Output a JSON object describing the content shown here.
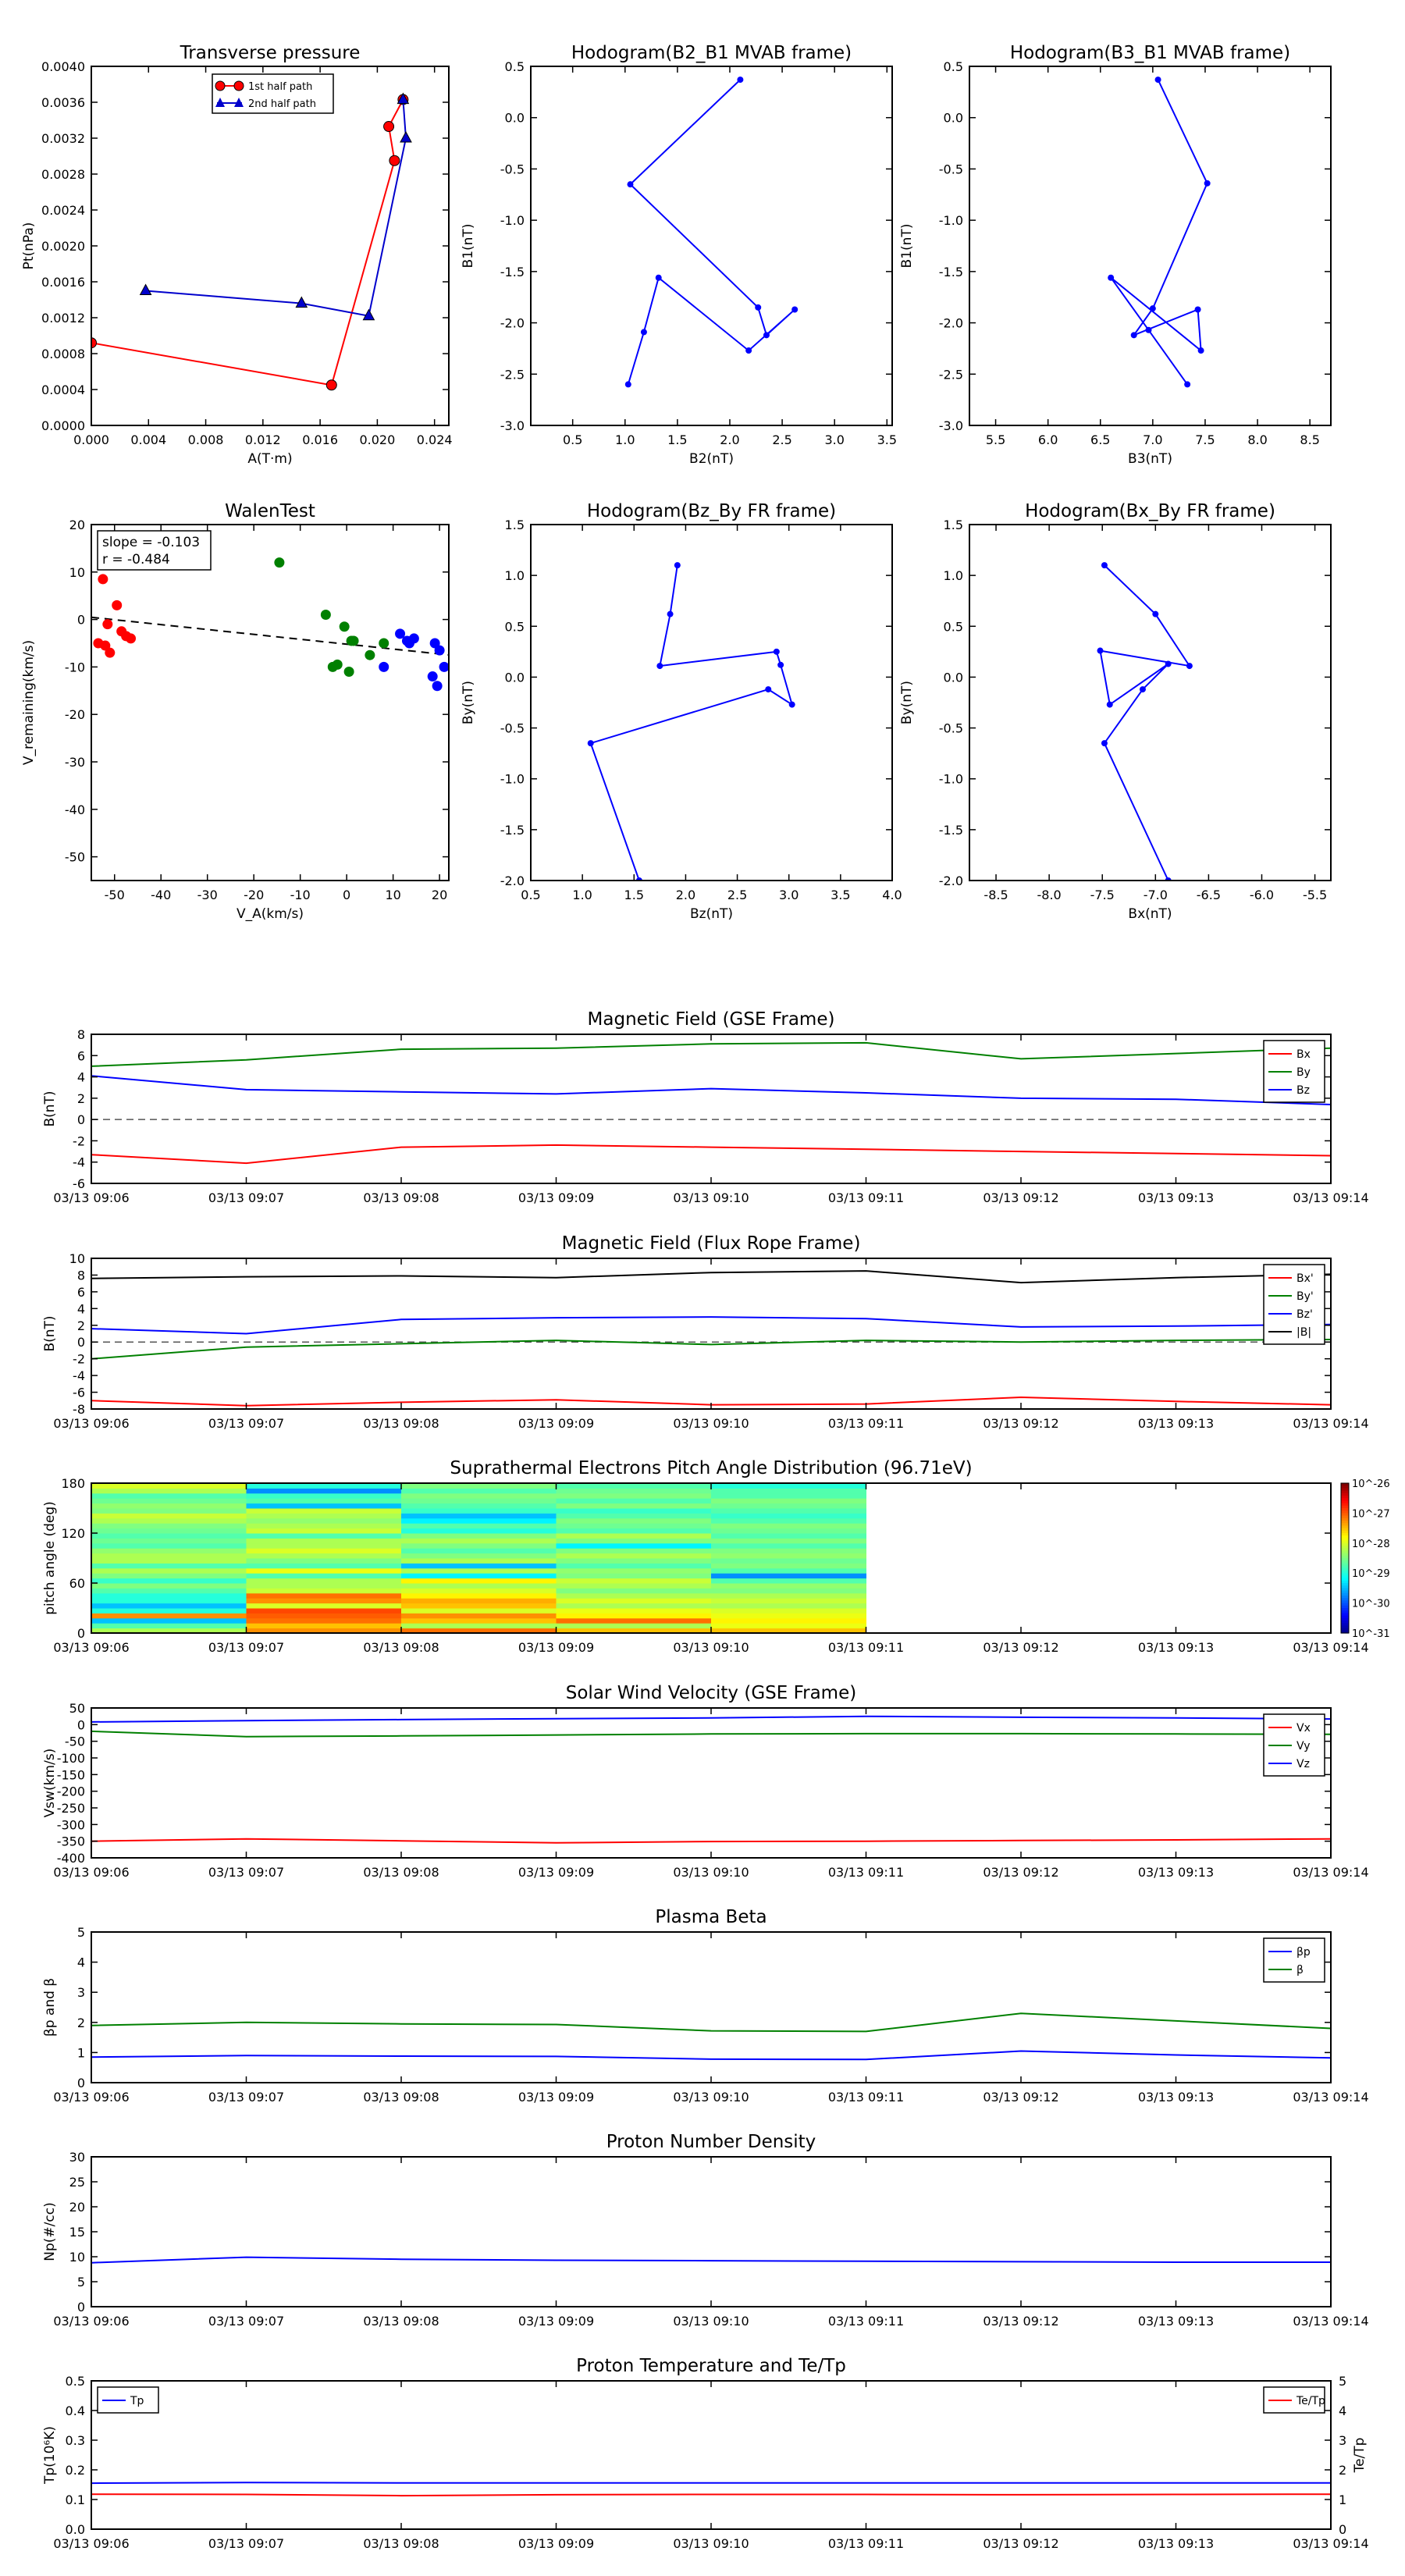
{
  "scatter_panels": [
    {
      "id": "transverse-pressure",
      "title": "Transverse pressure",
      "xlabel": "A(T·m)",
      "ylabel": "Pt(nPa)",
      "xlim": [
        0,
        0.025
      ],
      "ylim": [
        0,
        0.004
      ],
      "xticks": [
        "0.000",
        "0.004",
        "0.008",
        "0.012",
        "0.016",
        "0.020",
        "0.024"
      ],
      "yticks": [
        "0.0000",
        "0.0004",
        "0.0008",
        "0.0012",
        "0.0016",
        "0.0020",
        "0.0024",
        "0.0028",
        "0.0032",
        "0.0036",
        "0.0040"
      ],
      "legend": [
        {
          "name": "1st half path",
          "color": "#ff0000",
          "marker": "circle"
        },
        {
          "name": "2nd half path",
          "color": "#0000cc",
          "marker": "triangle"
        }
      ],
      "series": [
        {
          "name": "1st half path",
          "color": "#ff0000",
          "marker": "circle",
          "line": true,
          "x": [
            0.0,
            0.0168,
            0.0212,
            0.0208,
            0.0218
          ],
          "y": [
            0.00092,
            0.00045,
            0.00295,
            0.00333,
            0.00363
          ]
        },
        {
          "name": "2nd half path",
          "color": "#0000cc",
          "marker": "triangle",
          "line": true,
          "x": [
            0.0218,
            0.022,
            0.0194,
            0.0147,
            0.0038
          ],
          "y": [
            0.00363,
            0.0032,
            0.00122,
            0.00136,
            0.0015
          ]
        }
      ]
    },
    {
      "id": "hodogram-b2-b1",
      "title": "Hodogram(B2_B1 MVAB frame)",
      "xlabel": "B2(nT)",
      "ylabel": "B1(nT)",
      "xlim": [
        0.1,
        3.55
      ],
      "ylim": [
        -3.0,
        0.5
      ],
      "xticks": [
        "0.5",
        "1.0",
        "1.5",
        "2.0",
        "2.5",
        "3.0",
        "3.5"
      ],
      "yticks": [
        "-3.0",
        "-2.5",
        "-2.0",
        "-1.5",
        "-1.0",
        "-0.5",
        "0.0",
        "0.5"
      ],
      "series": [
        {
          "color": "#0000ff",
          "marker": "dot",
          "line": true,
          "x": [
            2.1,
            1.05,
            2.27,
            2.35,
            2.62,
            2.18,
            1.32,
            1.18,
            1.03
          ],
          "y": [
            0.37,
            -0.65,
            -1.85,
            -2.12,
            -1.87,
            -2.27,
            -1.56,
            -2.09,
            -2.6
          ]
        }
      ]
    },
    {
      "id": "hodogram-b3-b1",
      "title": "Hodogram(B3_B1 MVAB frame)",
      "xlabel": "B3(nT)",
      "ylabel": "B1(nT)",
      "xlim": [
        5.25,
        8.7
      ],
      "ylim": [
        -3.0,
        0.5
      ],
      "xticks": [
        "5.5",
        "6.0",
        "6.5",
        "7.0",
        "7.5",
        "8.0",
        "8.5"
      ],
      "yticks": [
        "-3.0",
        "-2.5",
        "-2.0",
        "-1.5",
        "-1.0",
        "-0.5",
        "0.0",
        "0.5"
      ],
      "series": [
        {
          "color": "#0000ff",
          "marker": "dot",
          "line": true,
          "x": [
            7.05,
            7.52,
            7.0,
            6.82,
            7.43,
            7.46,
            6.6,
            6.96,
            7.33
          ],
          "y": [
            0.37,
            -0.64,
            -1.86,
            -2.12,
            -1.87,
            -2.27,
            -1.56,
            -2.07,
            -2.6
          ]
        }
      ]
    },
    {
      "id": "walen-test",
      "title": "WalenTest",
      "xlabel": "V_A(km/s)",
      "ylabel": "V_remaining(km/s)",
      "xlim": [
        -55,
        22
      ],
      "ylim": [
        -55,
        20
      ],
      "xticks": [
        "-50",
        "-40",
        "-30",
        "-20",
        "-10",
        "0",
        "10",
        "20"
      ],
      "yticks": [
        "-50",
        "-40",
        "-30",
        "-20",
        "-10",
        "0",
        "10",
        "20"
      ],
      "annotation": [
        "slope = -0.103",
        "r = -0.484"
      ],
      "fit_line": {
        "slope": -0.103,
        "intercept": -5.2
      },
      "series": [
        {
          "color": "#ff0000",
          "marker": "bigdot",
          "line": false,
          "x": [
            -52.5,
            -51.5,
            -49.5,
            -48.5,
            -47.5,
            -46.5,
            -51.0,
            -53.5,
            -52.0
          ],
          "y": [
            8.5,
            -1.0,
            3.0,
            -2.5,
            -3.5,
            -4.0,
            -7.0,
            -5.0,
            -5.5
          ]
        },
        {
          "color": "#008000",
          "marker": "bigdot",
          "line": false,
          "x": [
            -14.5,
            -4.5,
            -0.5,
            1.0,
            1.5,
            5.0,
            8.0,
            -2.0,
            0.5,
            -3.0
          ],
          "y": [
            12.0,
            1.0,
            -1.5,
            -4.5,
            -4.5,
            -7.5,
            -5.0,
            -9.5,
            -11.0,
            -10.0
          ]
        },
        {
          "color": "#0000ff",
          "marker": "bigdot",
          "line": false,
          "x": [
            11.5,
            13.0,
            13.5,
            14.5,
            8.0,
            19.0,
            20.0,
            21.0,
            18.5,
            19.5
          ],
          "y": [
            -3.0,
            -4.5,
            -5.0,
            -4.0,
            -10.0,
            -5.0,
            -6.5,
            -10.0,
            -12.0,
            -14.0
          ]
        }
      ]
    },
    {
      "id": "hodogram-bz-by",
      "title": "Hodogram(Bz_By FR frame)",
      "xlabel": "Bz(nT)",
      "ylabel": "By(nT)",
      "xlim": [
        0.5,
        4.0
      ],
      "ylim": [
        -2.0,
        1.5
      ],
      "xticks": [
        "0.5",
        "1.0",
        "1.5",
        "2.0",
        "2.5",
        "3.0",
        "3.5",
        "4.0"
      ],
      "yticks": [
        "-2.0",
        "-1.5",
        "-1.0",
        "-0.5",
        "0.0",
        "0.5",
        "1.0",
        "1.5"
      ],
      "series": [
        {
          "color": "#0000ff",
          "marker": "dot",
          "line": true,
          "x": [
            1.92,
            1.85,
            1.75,
            2.88,
            2.92,
            3.03,
            2.8,
            1.08,
            1.55
          ],
          "y": [
            1.1,
            0.62,
            0.11,
            0.25,
            0.12,
            -0.27,
            -0.12,
            -0.65,
            -2.0
          ]
        }
      ]
    },
    {
      "id": "hodogram-bx-by",
      "title": "Hodogram(Bx_By FR frame)",
      "xlabel": "Bx(nT)",
      "ylabel": "By(nT)",
      "xlim": [
        -8.75,
        -5.35
      ],
      "ylim": [
        -2.0,
        1.5
      ],
      "xticks": [
        "-8.5",
        "-8.0",
        "-7.5",
        "-7.0",
        "-6.5",
        "-6.0",
        "-5.5"
      ],
      "yticks": [
        "-2.0",
        "-1.5",
        "-1.0",
        "-0.5",
        "0.0",
        "0.5",
        "1.0",
        "1.5"
      ],
      "series": [
        {
          "color": "#0000ff",
          "marker": "dot",
          "line": true,
          "x": [
            -7.48,
            -7.0,
            -6.68,
            -7.52,
            -7.43,
            -6.88,
            -7.12,
            -7.48,
            -6.88
          ],
          "y": [
            1.1,
            0.62,
            0.11,
            0.26,
            -0.27,
            0.13,
            -0.12,
            -0.65,
            -2.0
          ]
        }
      ]
    }
  ],
  "time_ticks": [
    "03/13 09:06",
    "03/13 09:07",
    "03/13 09:08",
    "03/13 09:09",
    "03/13 09:10",
    "03/13 09:11",
    "03/13 09:12",
    "03/13 09:13",
    "03/13 09:14"
  ],
  "time_panels": [
    {
      "id": "magnetic-field-gse",
      "title": "Magnetic Field (GSE Frame)",
      "ylabel": "B(nT)",
      "ylim": [
        -6,
        8
      ],
      "yticks": [
        "-6",
        "-4",
        "-2",
        "0",
        "2",
        "4",
        "6",
        "8"
      ],
      "zero_line": true,
      "legend_pos": "upper-right",
      "series": [
        {
          "name": "Bx",
          "color": "#ff0000",
          "y": [
            -3.3,
            -4.1,
            -2.6,
            -2.4,
            -2.6,
            -2.8,
            -3.0,
            -3.2,
            -3.4
          ]
        },
        {
          "name": "By",
          "color": "#008000",
          "y": [
            5.0,
            5.6,
            6.6,
            6.7,
            7.1,
            7.2,
            5.7,
            6.2,
            6.7
          ]
        },
        {
          "name": "Bz",
          "color": "#0000ff",
          "y": [
            4.1,
            2.8,
            2.6,
            2.4,
            2.9,
            2.5,
            2.0,
            1.9,
            1.4
          ]
        }
      ]
    },
    {
      "id": "magnetic-field-fr",
      "title": "Magnetic Field (Flux Rope Frame)",
      "ylabel": "B(nT)",
      "ylim": [
        -8,
        10
      ],
      "yticks": [
        "-8",
        "-6",
        "-4",
        "-2",
        "0",
        "2",
        "4",
        "6",
        "8",
        "10"
      ],
      "zero_line": true,
      "legend_pos": "upper-right",
      "series": [
        {
          "name": "Bx'",
          "color": "#ff0000",
          "y": [
            -7.0,
            -7.6,
            -7.2,
            -6.9,
            -7.5,
            -7.4,
            -6.6,
            -7.1,
            -7.5
          ]
        },
        {
          "name": "By'",
          "color": "#008000",
          "y": [
            -2.0,
            -0.6,
            -0.2,
            0.2,
            -0.3,
            0.2,
            0.0,
            0.2,
            0.3
          ]
        },
        {
          "name": "Bz'",
          "color": "#0000ff",
          "y": [
            1.6,
            1.0,
            2.7,
            2.9,
            3.0,
            2.8,
            1.8,
            1.9,
            2.1
          ]
        },
        {
          "name": "|B|",
          "color": "#000000",
          "y": [
            7.6,
            7.8,
            7.9,
            7.7,
            8.3,
            8.5,
            7.1,
            7.7,
            8.1
          ]
        }
      ]
    },
    {
      "id": "pitch-angle",
      "type": "heatmap",
      "title": "Suprathermal Electrons Pitch Angle Distribution (96.71eV)",
      "ylabel": "pitch angle (deg)",
      "ylim": [
        0,
        180
      ],
      "yticks": [
        "0",
        "60",
        "120",
        "180"
      ],
      "colorbar_ticks": [
        "10^-26",
        "10^-27",
        "10^-28",
        "10^-29",
        "10^-30",
        "10^-31"
      ],
      "heat_levels": [
        [
          0.55,
          0.45,
          0.3,
          0.75,
          0.4,
          0.3,
          0.4,
          0.4,
          0.45,
          0.5,
          0.42,
          0.5,
          0.55,
          0.45,
          0.55,
          0.55,
          0.52,
          0.45,
          0.48,
          0.45,
          0.48,
          0.5,
          0.55,
          0.58,
          0.5,
          0.52,
          0.48,
          0.45,
          0.55,
          0.6
        ],
        [
          0.75,
          0.7,
          0.78,
          0.8,
          0.82,
          0.6,
          0.75,
          0.78,
          0.58,
          0.55,
          0.55,
          0.45,
          0.62,
          0.45,
          0.5,
          0.55,
          0.6,
          0.55,
          0.55,
          0.45,
          0.58,
          0.55,
          0.52,
          0.55,
          0.58,
          0.3,
          0.45,
          0.42,
          0.25,
          0.4
        ],
        [
          0.78,
          0.55,
          0.7,
          0.75,
          0.6,
          0.7,
          0.72,
          0.65,
          0.6,
          0.55,
          0.65,
          0.35,
          0.55,
          0.3,
          0.55,
          0.5,
          0.45,
          0.5,
          0.55,
          0.5,
          0.4,
          0.45,
          0.35,
          0.3,
          0.42,
          0.45,
          0.48,
          0.5,
          0.45,
          0.5
        ],
        [
          0.7,
          0.55,
          0.78,
          0.65,
          0.62,
          0.55,
          0.6,
          0.55,
          0.5,
          0.55,
          0.58,
          0.5,
          0.52,
          0.45,
          0.5,
          0.55,
          0.5,
          0.35,
          0.5,
          0.55,
          0.45,
          0.48,
          0.5,
          0.45,
          0.42,
          0.5,
          0.45,
          0.5,
          0.48,
          0.45
        ],
        [
          0.7,
          0.62,
          0.65,
          0.62,
          0.6,
          0.55,
          0.58,
          0.55,
          0.5,
          0.52,
          0.45,
          0.25,
          0.45,
          0.5,
          0.48,
          0.52,
          0.5,
          0.45,
          0.5,
          0.45,
          0.48,
          0.5,
          0.45,
          0.42,
          0.45,
          0.48,
          0.5,
          0.45,
          0.45,
          0.4
        ]
      ]
    },
    {
      "id": "solar-wind-velocity",
      "title": "Solar Wind Velocity (GSE Frame)",
      "ylabel": "Vsw(km/s)",
      "ylim": [
        -400,
        50
      ],
      "yticks": [
        "-400",
        "-350",
        "-300",
        "-250",
        "-200",
        "-150",
        "-100",
        "-50",
        "0",
        "50"
      ],
      "legend_pos": "upper-right",
      "series": [
        {
          "name": "Vx",
          "color": "#ff0000",
          "y": [
            -350,
            -343,
            -349,
            -355,
            -351,
            -350,
            -348,
            -346,
            -343
          ]
        },
        {
          "name": "Vy",
          "color": "#008000",
          "y": [
            -20,
            -36,
            -34,
            -31,
            -28,
            -27,
            -27,
            -28,
            -29
          ]
        },
        {
          "name": "Vz",
          "color": "#0000ff",
          "y": [
            8,
            12,
            15,
            18,
            20,
            25,
            22,
            20,
            17
          ]
        }
      ]
    },
    {
      "id": "plasma-beta",
      "title": "Plasma Beta",
      "ylabel": "βp and β",
      "ylim": [
        0,
        5
      ],
      "yticks": [
        "0",
        "1",
        "2",
        "3",
        "4",
        "5"
      ],
      "legend_pos": "upper-right",
      "series": [
        {
          "name": "βp",
          "color": "#0000ff",
          "y": [
            0.85,
            0.9,
            0.88,
            0.87,
            0.78,
            0.77,
            1.05,
            0.92,
            0.82
          ]
        },
        {
          "name": "β",
          "color": "#008000",
          "y": [
            1.9,
            2.0,
            1.95,
            1.93,
            1.72,
            1.7,
            2.3,
            2.05,
            1.8
          ]
        }
      ]
    },
    {
      "id": "proton-density",
      "title": "Proton Number Density",
      "ylabel": "Np(#/cc)",
      "ylim": [
        0,
        30
      ],
      "yticks": [
        "0",
        "5",
        "10",
        "15",
        "20",
        "25",
        "30"
      ],
      "series": [
        {
          "name": "Np",
          "color": "#0000ff",
          "y": [
            8.8,
            9.9,
            9.5,
            9.3,
            9.2,
            9.1,
            9.0,
            8.9,
            8.9
          ]
        }
      ]
    },
    {
      "id": "proton-temperature",
      "title": "Proton Temperature and Te/Tp",
      "ylabel": "Tp(10⁶K)",
      "ylim": [
        0,
        0.5
      ],
      "yticks": [
        "0.0",
        "0.1",
        "0.2",
        "0.3",
        "0.4",
        "0.5"
      ],
      "y2label": "Te/Tp",
      "y2lim": [
        0,
        5
      ],
      "y2ticks": [
        "0",
        "1",
        "2",
        "3",
        "4",
        "5"
      ],
      "legend_pos": "upper-left",
      "legend2_pos": "upper-right",
      "series": [
        {
          "name": "Tp",
          "color": "#0000ff",
          "y": [
            0.155,
            0.157,
            0.156,
            0.156,
            0.156,
            0.156,
            0.156,
            0.156,
            0.156
          ]
        }
      ],
      "series2": [
        {
          "name": "Te/Tp",
          "color": "#ff0000",
          "y": [
            1.18,
            1.17,
            1.13,
            1.16,
            1.17,
            1.17,
            1.16,
            1.17,
            1.18
          ]
        }
      ]
    }
  ]
}
